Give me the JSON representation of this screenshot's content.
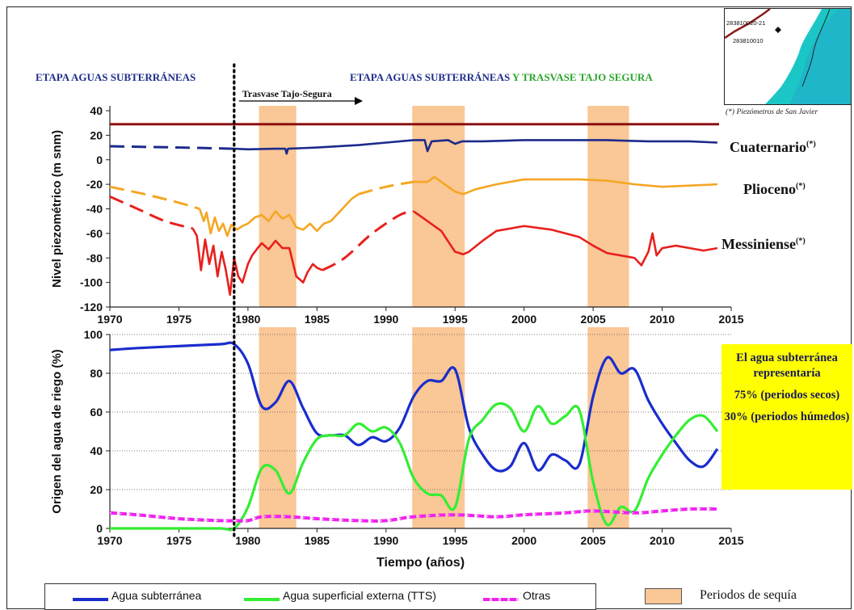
{
  "stage_left": {
    "prefix": "ETAPA ",
    "highlight": "AGUAS SUBTERRÁNEAS"
  },
  "stage_right": {
    "prefix": "ETAPA ",
    "highlight1": "AGUAS SUBTERRÁNEAS",
    "highlight2": " Y TRASVASE TAJO SEGURA"
  },
  "trasvase_label": "Trasvase Tajo-Segura",
  "map": {
    "code1": "283810020-21",
    "code2": "283810010",
    "note": "(*) Piezómetros de San Javier"
  },
  "aquifer_labels": {
    "cuaternario": "Cuaternario",
    "plioceno": "Plioceno",
    "messiniense": "Messiniense",
    "mark": "(*)"
  },
  "yellow_box": {
    "p1": "El agua subterránea representaría",
    "p2": "75% (periodos secos)",
    "p3": "30% (periodos húmedos)"
  },
  "legend": {
    "agua_sub": "Agua subterránea",
    "agua_sup": "Agua superficial externa (TTS)",
    "otras": "Otras",
    "sequia": "Periodos de sequía"
  },
  "colors": {
    "cuaternario": "#1c2a8c",
    "plioceno": "#f5a623",
    "messiniense": "#e8201c",
    "reference": "#8b1010",
    "agua_sub": "#1a2dcc",
    "agua_sup": "#33ee33",
    "otras": "#ee22ee",
    "drought": "#fac796",
    "yellow": "#ffff00"
  },
  "chart_data": [
    {
      "type": "line",
      "ylabel": "Nivel piezométrico (m snm)",
      "xlim": [
        1970,
        2015
      ],
      "ylim": [
        -120,
        40
      ],
      "xticks": [
        "1970",
        "1975",
        "1980",
        "1985",
        "1990",
        "1995",
        "2000",
        "2005",
        "2010",
        "2015"
      ],
      "yticks": [
        "40",
        "20",
        "0",
        "-20",
        "-40",
        "-60",
        "-80",
        "-100",
        "-120"
      ],
      "reference_line": 29,
      "drought_periods": [
        [
          1980.8,
          1983.5
        ],
        [
          1991.9,
          1995.7
        ],
        [
          2004.6,
          2007.6
        ]
      ],
      "series": [
        {
          "name": "Cuaternario",
          "key": "cuaternario",
          "dashed": [
            [
              1970,
              11
            ],
            [
              1975,
              10
            ],
            [
              1979,
              9
            ]
          ],
          "solid": [
            [
              1979,
              9
            ],
            [
              1980,
              8.5
            ],
            [
              1982,
              9
            ],
            [
              1982.7,
              9
            ],
            [
              1982.8,
              5
            ],
            [
              1982.9,
              9
            ],
            [
              1985,
              10
            ],
            [
              1988,
              12
            ],
            [
              1990,
              14
            ],
            [
              1992,
              16
            ],
            [
              1992.8,
              16
            ],
            [
              1993,
              7
            ],
            [
              1993.3,
              15
            ],
            [
              1994.5,
              16
            ],
            [
              1995,
              13
            ],
            [
              1995.5,
              15
            ],
            [
              1997,
              15
            ],
            [
              2000,
              16
            ],
            [
              2003,
              16
            ],
            [
              2006,
              16
            ],
            [
              2009,
              15
            ],
            [
              2012,
              15
            ],
            [
              2014,
              14
            ]
          ]
        },
        {
          "name": "Plioceno",
          "key": "plioceno",
          "dashed": [
            [
              1970,
              -22
            ],
            [
              1972.5,
              -28
            ],
            [
              1975,
              -35
            ],
            [
              1976.5,
              -40
            ]
          ],
          "solid": [
            [
              1976.5,
              -40
            ],
            [
              1976.8,
              -50
            ],
            [
              1977,
              -43
            ],
            [
              1977.3,
              -60
            ],
            [
              1977.6,
              -47
            ],
            [
              1977.9,
              -58
            ],
            [
              1978.2,
              -52
            ],
            [
              1978.5,
              -62
            ],
            [
              1978.8,
              -53
            ],
            [
              1979.2,
              -57
            ],
            [
              1979.6,
              -54
            ],
            [
              1980,
              -52
            ],
            [
              1980.5,
              -47
            ],
            [
              1981,
              -45
            ],
            [
              1981.5,
              -50
            ],
            [
              1982,
              -42
            ],
            [
              1982.5,
              -48
            ],
            [
              1983,
              -45
            ],
            [
              1983.5,
              -55
            ],
            [
              1984,
              -57
            ],
            [
              1984.5,
              -52
            ],
            [
              1985,
              -58
            ],
            [
              1985.5,
              -52
            ],
            [
              1986,
              -50
            ],
            [
              1986.5,
              -44
            ],
            [
              1987,
              -38
            ],
            [
              1987.5,
              -32
            ],
            [
              1988,
              -28
            ]
          ],
          "dashed2": [
            [
              1988,
              -28
            ],
            [
              1990,
              -22
            ],
            [
              1992,
              -18
            ]
          ],
          "solid2": [
            [
              1992,
              -18
            ],
            [
              1993,
              -18
            ],
            [
              1993.5,
              -14
            ],
            [
              1994,
              -18
            ],
            [
              1994.5,
              -22
            ],
            [
              1995,
              -26
            ],
            [
              1995.6,
              -28
            ],
            [
              1996.5,
              -24
            ],
            [
              1998,
              -20
            ],
            [
              2000,
              -16
            ],
            [
              2002,
              -16
            ],
            [
              2004,
              -16
            ],
            [
              2006,
              -17
            ],
            [
              2008,
              -20
            ],
            [
              2010,
              -22
            ],
            [
              2012,
              -21
            ],
            [
              2014,
              -20
            ]
          ]
        },
        {
          "name": "Messiniense",
          "key": "messiniense",
          "dashed": [
            [
              1970,
              -30
            ],
            [
              1972,
              -40
            ],
            [
              1974,
              -50
            ],
            [
              1976,
              -56
            ]
          ],
          "solid": [
            [
              1976,
              -56
            ],
            [
              1976.3,
              -62
            ],
            [
              1976.6,
              -90
            ],
            [
              1976.9,
              -65
            ],
            [
              1977.2,
              -85
            ],
            [
              1977.5,
              -70
            ],
            [
              1977.8,
              -95
            ],
            [
              1978.1,
              -75
            ],
            [
              1978.4,
              -90
            ],
            [
              1978.7,
              -110
            ],
            [
              1979,
              -80
            ],
            [
              1979.3,
              -95
            ],
            [
              1979.6,
              -100
            ],
            [
              1980,
              -85
            ],
            [
              1980.3,
              -78
            ],
            [
              1980.7,
              -72
            ],
            [
              1981,
              -68
            ],
            [
              1981.5,
              -73
            ],
            [
              1982,
              -66
            ],
            [
              1982.5,
              -72
            ],
            [
              1983,
              -72
            ],
            [
              1983.5,
              -95
            ],
            [
              1984,
              -100
            ],
            [
              1984.3,
              -92
            ],
            [
              1984.7,
              -85
            ],
            [
              1985,
              -88
            ],
            [
              1985.4,
              -90
            ]
          ],
          "dashed2": [
            [
              1985.4,
              -90
            ],
            [
              1987,
              -80
            ],
            [
              1989,
              -60
            ],
            [
              1991,
              -45
            ],
            [
              1992,
              -42
            ]
          ],
          "solid2": [
            [
              1992,
              -42
            ],
            [
              1992.5,
              -46
            ],
            [
              1993,
              -50
            ],
            [
              1994,
              -58
            ],
            [
              1995,
              -75
            ],
            [
              1995.6,
              -77
            ],
            [
              1996,
              -75
            ],
            [
              1997,
              -66
            ],
            [
              1998,
              -58
            ],
            [
              2000,
              -54
            ],
            [
              2002,
              -57
            ],
            [
              2004,
              -63
            ],
            [
              2005,
              -70
            ],
            [
              2006,
              -76
            ],
            [
              2007,
              -78
            ],
            [
              2008,
              -80
            ],
            [
              2008.5,
              -86
            ],
            [
              2009,
              -75
            ],
            [
              2009.3,
              -60
            ],
            [
              2009.6,
              -78
            ],
            [
              2010,
              -72
            ],
            [
              2011,
              -70
            ],
            [
              2012,
              -72
            ],
            [
              2013,
              -74
            ],
            [
              2014,
              -72
            ]
          ]
        }
      ]
    },
    {
      "type": "line",
      "ylabel": "Origen del agua de riego (%)",
      "xlabel": "Tiempo (años)",
      "xlim": [
        1970,
        2015
      ],
      "ylim": [
        0,
        100
      ],
      "xticks": [
        "1970",
        "1975",
        "1980",
        "1985",
        "1990",
        "1995",
        "2000",
        "2005",
        "2010",
        "2015"
      ],
      "yticks": [
        "100",
        "80",
        "60",
        "40",
        "20",
        "0"
      ],
      "drought_periods": [
        [
          1980.8,
          1983.5
        ],
        [
          1991.9,
          1995.7
        ],
        [
          2004.6,
          2007.6
        ]
      ],
      "series": [
        {
          "name": "Agua subterránea",
          "key": "agua_sub",
          "points": [
            [
              1970,
              92
            ],
            [
              1972,
              93
            ],
            [
              1975,
              94
            ],
            [
              1978,
              95
            ],
            [
              1979,
              95
            ],
            [
              1980,
              85
            ],
            [
              1981,
              63
            ],
            [
              1982,
              65
            ],
            [
              1983,
              76
            ],
            [
              1984,
              62
            ],
            [
              1985,
              49
            ],
            [
              1986,
              48
            ],
            [
              1987,
              48
            ],
            [
              1988,
              43
            ],
            [
              1989,
              47
            ],
            [
              1990,
              45
            ],
            [
              1991,
              52
            ],
            [
              1992,
              68
            ],
            [
              1993,
              76
            ],
            [
              1994,
              76
            ],
            [
              1995,
              82
            ],
            [
              1996,
              52
            ],
            [
              1997,
              38
            ],
            [
              1998,
              30
            ],
            [
              1999,
              32
            ],
            [
              2000,
              44
            ],
            [
              2001,
              30
            ],
            [
              2002,
              38
            ],
            [
              2003,
              35
            ],
            [
              2004,
              33
            ],
            [
              2005,
              68
            ],
            [
              2006,
              88
            ],
            [
              2007,
              80
            ],
            [
              2008,
              82
            ],
            [
              2009,
              66
            ],
            [
              2010,
              54
            ],
            [
              2011,
              44
            ],
            [
              2012,
              35
            ],
            [
              2013,
              32
            ],
            [
              2014,
              41
            ]
          ]
        },
        {
          "name": "Agua superficial externa (TTS)",
          "key": "agua_sup",
          "points": [
            [
              1970,
              0
            ],
            [
              1972,
              0
            ],
            [
              1975,
              0
            ],
            [
              1978,
              0
            ],
            [
              1979,
              0
            ],
            [
              1980,
              11
            ],
            [
              1981,
              31
            ],
            [
              1982,
              30
            ],
            [
              1983,
              18
            ],
            [
              1984,
              34
            ],
            [
              1985,
              46
            ],
            [
              1986,
              48
            ],
            [
              1987,
              48
            ],
            [
              1988,
              54
            ],
            [
              1989,
              50
            ],
            [
              1990,
              52
            ],
            [
              1991,
              44
            ],
            [
              1992,
              26
            ],
            [
              1993,
              18
            ],
            [
              1994,
              17
            ],
            [
              1995,
              11
            ],
            [
              1996,
              46
            ],
            [
              1997,
              56
            ],
            [
              1998,
              64
            ],
            [
              1999,
              62
            ],
            [
              2000,
              50
            ],
            [
              2001,
              63
            ],
            [
              2002,
              54
            ],
            [
              2003,
              58
            ],
            [
              2004,
              61
            ],
            [
              2005,
              24
            ],
            [
              2006,
              2
            ],
            [
              2007,
              11
            ],
            [
              2008,
              9
            ],
            [
              2009,
              26
            ],
            [
              2010,
              38
            ],
            [
              2011,
              48
            ],
            [
              2012,
              56
            ],
            [
              2013,
              58
            ],
            [
              2014,
              50
            ]
          ]
        },
        {
          "name": "Otras",
          "key": "otras",
          "points": [
            [
              1970,
              8
            ],
            [
              1972,
              7
            ],
            [
              1975,
              5
            ],
            [
              1978,
              4
            ],
            [
              1979,
              4
            ],
            [
              1980,
              4
            ],
            [
              1981,
              6
            ],
            [
              1983,
              6
            ],
            [
              1985,
              5
            ],
            [
              1988,
              4
            ],
            [
              1990,
              4
            ],
            [
              1992,
              6
            ],
            [
              1995,
              7
            ],
            [
              1998,
              6
            ],
            [
              2000,
              7
            ],
            [
              2003,
              8
            ],
            [
              2005,
              9
            ],
            [
              2008,
              8
            ],
            [
              2010,
              9
            ],
            [
              2012,
              10
            ],
            [
              2014,
              10
            ]
          ]
        }
      ]
    }
  ]
}
